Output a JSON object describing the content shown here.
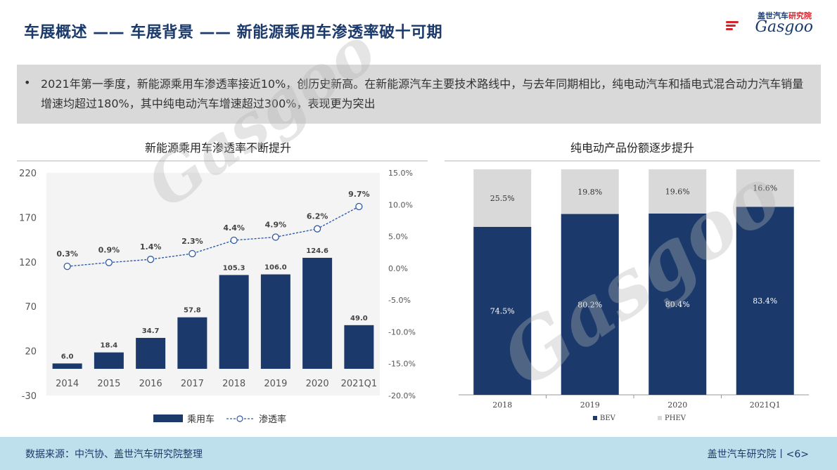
{
  "header": {
    "title": "车展概述 —— 车展背景 —— 新能源乘用车渗透率破十可期",
    "logo_cn_prefix": "盖世汽车",
    "logo_cn_suffix": "研究院",
    "logo_en": "Gasgoo"
  },
  "summary": {
    "bullet": "•",
    "text": "2021年第一季度，新能源乘用车渗透率接近10%，创历史新高。在新能源汽车主要技术路线中，与去年同期相比，纯电动汽车和插电式混合动力汽车销量增速均超过180%，其中纯电动汽车增速超过300%，表现更为突出"
  },
  "colors": {
    "navy": "#1b3a6b",
    "gray_bar": "#d9d9d9",
    "line": "#2e5aa8",
    "footer_bg": "#bde0ec"
  },
  "chart_data": [
    {
      "type": "bar+line",
      "title": "新能源乘用车渗透率不断提升",
      "categories": [
        "2014",
        "2015",
        "2016",
        "2017",
        "2018",
        "2019",
        "2020",
        "2021Q1"
      ],
      "series": [
        {
          "name": "乘用车",
          "type": "bar",
          "axis": "left",
          "values": [
            6.0,
            18.4,
            34.7,
            57.8,
            105.3,
            106.0,
            124.6,
            49.0
          ],
          "labels": [
            "6.0",
            "18.4",
            "34.7",
            "57.8",
            "105.3",
            "106.0",
            "124.6",
            "49.0"
          ]
        },
        {
          "name": "渗透率",
          "type": "line",
          "axis": "right",
          "values": [
            0.3,
            0.9,
            1.4,
            2.3,
            4.4,
            4.9,
            6.2,
            9.7
          ],
          "labels": [
            "0.3%",
            "0.9%",
            "1.4%",
            "2.3%",
            "4.4%",
            "4.9%",
            "6.2%",
            "9.7%"
          ]
        }
      ],
      "left_axis": {
        "range": [
          -30,
          220
        ],
        "ticks": [
          "220",
          "170",
          "120",
          "70",
          "20",
          "-30"
        ]
      },
      "right_axis": {
        "range": [
          -20,
          15
        ],
        "ticks": [
          "15.0%",
          "10.0%",
          "5.0%",
          "0.0%",
          "-5.0%",
          "-10.0%",
          "-15.0%",
          "-20.0%"
        ]
      },
      "grid": false,
      "legend": "bottom-center"
    },
    {
      "type": "stacked-bar-100",
      "title": "纯电动产品份额逐步提升",
      "categories": [
        "2018",
        "2019",
        "2020",
        "2021Q1"
      ],
      "series": [
        {
          "name": "BEV",
          "values": [
            74.5,
            80.2,
            80.4,
            83.4
          ],
          "labels": [
            "74.5%",
            "80.2%",
            "80.4%",
            "83.4%"
          ]
        },
        {
          "name": "PHEV",
          "values": [
            25.5,
            19.8,
            19.6,
            16.6
          ],
          "labels": [
            "25.5%",
            "19.8%",
            "19.6%",
            "16.6%"
          ]
        }
      ],
      "grid": false,
      "legend": "bottom-center"
    }
  ],
  "footer": {
    "source": "数据来源：中汽协、盖世汽车研究院整理",
    "org": "盖世汽车研究院丨<6>"
  }
}
